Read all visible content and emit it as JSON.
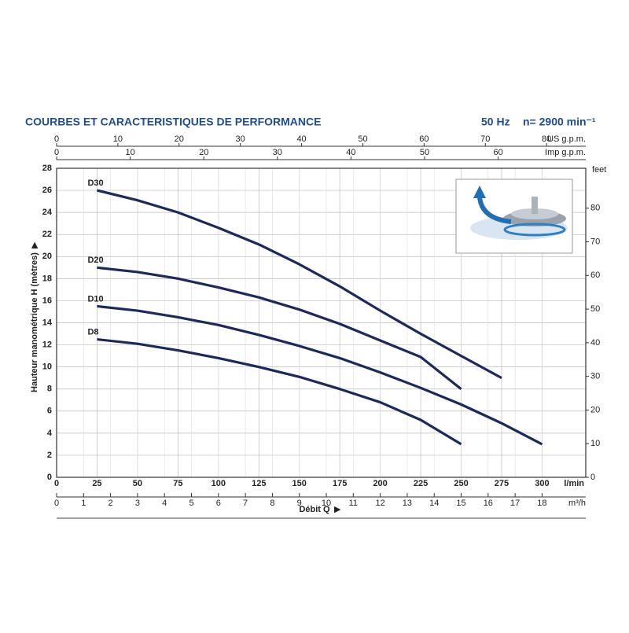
{
  "chart_data": {
    "type": "line",
    "title": "COURBES ET CARACTERISTIQUES DE PERFORMANCE",
    "frequency": "50 Hz",
    "speed": "n= 2900 min⁻¹",
    "y_label": "Hauteur manométrique H (mètres)",
    "x_label": "Débit Q",
    "x_unit": "l/min",
    "x": [
      25,
      50,
      75,
      100,
      125,
      150,
      175,
      200,
      225,
      250,
      275,
      300
    ],
    "xlim": [
      0,
      327
    ],
    "xticks": [
      0,
      25,
      50,
      75,
      100,
      125,
      150,
      175,
      200,
      225,
      250,
      275,
      300
    ],
    "ylim": [
      0,
      28
    ],
    "yticks": [
      0,
      2,
      4,
      6,
      8,
      10,
      12,
      14,
      16,
      18,
      20,
      22,
      24,
      26,
      28
    ],
    "grid": true,
    "series": [
      {
        "name": "D30",
        "color": "#1a2a5e",
        "values": [
          26,
          25.1,
          24,
          22.6,
          21.1,
          19.3,
          17.3,
          15.1,
          13,
          11,
          9,
          null
        ]
      },
      {
        "name": "D20",
        "color": "#1a2a5e",
        "values": [
          19,
          18.6,
          18,
          17.2,
          16.3,
          15.2,
          13.9,
          12.4,
          10.9,
          8,
          null,
          null
        ]
      },
      {
        "name": "D10",
        "color": "#1a2a5e",
        "values": [
          15.5,
          15.1,
          14.5,
          13.8,
          12.9,
          11.9,
          10.8,
          9.5,
          8.1,
          6.6,
          4.9,
          3
        ]
      },
      {
        "name": "D8",
        "color": "#1a2a5e",
        "values": [
          12.5,
          12.1,
          11.5,
          10.8,
          10,
          9.1,
          8,
          6.8,
          5.2,
          3,
          null,
          null
        ]
      }
    ],
    "secondary_axes": [
      {
        "position": "top",
        "label": "US g.p.m.",
        "lim": [
          0,
          86.4
        ],
        "ticks": [
          0,
          10,
          20,
          30,
          40,
          50,
          60,
          70,
          80
        ]
      },
      {
        "position": "top2",
        "label": "Imp g.p.m.",
        "lim": [
          0,
          71.9
        ],
        "ticks": [
          0,
          10,
          20,
          30,
          40,
          50,
          60
        ]
      },
      {
        "position": "bottom",
        "label": "m³/h",
        "lim": [
          0,
          19.62
        ],
        "ticks": [
          0,
          1,
          2,
          3,
          4,
          5,
          6,
          7,
          8,
          9,
          10,
          11,
          12,
          13,
          14,
          15,
          16,
          17,
          18
        ]
      },
      {
        "position": "right",
        "label": "feet",
        "lim": [
          0,
          91.86
        ],
        "ticks": [
          0,
          10,
          20,
          30,
          40,
          50,
          60,
          70,
          80
        ]
      }
    ]
  }
}
